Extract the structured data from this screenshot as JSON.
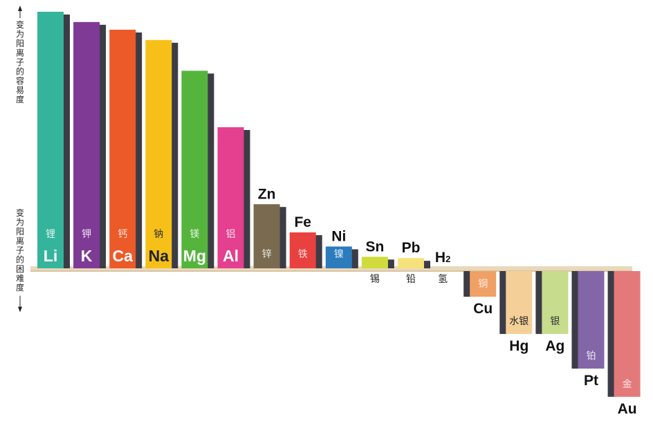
{
  "chart_data": {
    "type": "bar",
    "axis_top_label": "变为阳离子的容易度",
    "axis_bottom_label": "变为阳离子的困难度",
    "baseline_category_index": 11,
    "categories": [
      {
        "symbol": "Li",
        "name": "锂",
        "value": 10.0,
        "color": "#35b49c"
      },
      {
        "symbol": "K",
        "name": "钾",
        "value": 9.6,
        "color": "#7f3a96"
      },
      {
        "symbol": "Ca",
        "name": "钙",
        "value": 9.3,
        "color": "#ec5a2a"
      },
      {
        "symbol": "Na",
        "name": "钠",
        "value": 8.9,
        "color": "#f7c019"
      },
      {
        "symbol": "Mg",
        "name": "镁",
        "value": 7.7,
        "color": "#55b43c"
      },
      {
        "symbol": "Al",
        "name": "铝",
        "value": 5.5,
        "color": "#e4408f"
      },
      {
        "symbol": "Zn",
        "name": "锌",
        "value": 2.5,
        "color": "#7a6a4f"
      },
      {
        "symbol": "Fe",
        "name": "铁",
        "value": 1.4,
        "color": "#e8413f"
      },
      {
        "symbol": "Ni",
        "name": "镍",
        "value": 0.85,
        "color": "#2b7bbd"
      },
      {
        "symbol": "Sn",
        "name": "锡",
        "value": 0.45,
        "color": "#cfdc3c"
      },
      {
        "symbol": "Pb",
        "name": "铅",
        "value": 0.4,
        "color": "#f6e27a"
      },
      {
        "symbol": "H",
        "subscript": "2",
        "name": "氢",
        "value": 0,
        "color": "#e9d9bf"
      },
      {
        "symbol": "Cu",
        "name": "铜",
        "value": -1.0,
        "color": "#f0a064"
      },
      {
        "symbol": "Hg",
        "name": "水银",
        "value": -2.45,
        "color": "#f5cf98"
      },
      {
        "symbol": "Ag",
        "name": "银",
        "value": -2.45,
        "color": "#c7dc8c"
      },
      {
        "symbol": "Pt",
        "name": "铂",
        "value": -3.8,
        "color": "#8266a8"
      },
      {
        "symbol": "Au",
        "name": "金",
        "value": -4.9,
        "color": "#e4797b"
      }
    ],
    "colors": {
      "baseline": "#ead8bb",
      "bar_shadow": "#3c3c46"
    }
  }
}
